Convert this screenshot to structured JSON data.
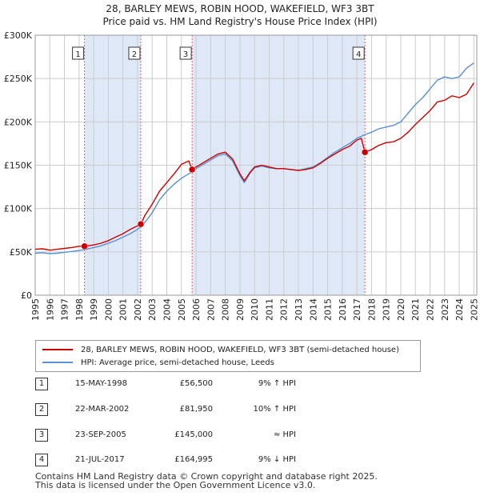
{
  "title": "28, BARLEY MEWS, ROBIN HOOD, WAKEFIELD, WF3 3BT",
  "subtitle": "Price paid vs. HM Land Registry's House Price Index (HPI)",
  "colors": {
    "property": "#cc0000",
    "hpi": "#5b8fd0",
    "shade": "#dfe8f7",
    "marker_line": "#dd6666"
  },
  "chart_data": {
    "type": "line",
    "title": "28, BARLEY MEWS, ROBIN HOOD, WAKEFIELD, WF3 3BT",
    "xlim": [
      1995,
      2025.2
    ],
    "ylim": [
      0,
      300000
    ],
    "x_ticks": [
      1995,
      1996,
      1997,
      1998,
      1999,
      2000,
      2001,
      2002,
      2003,
      2004,
      2005,
      2006,
      2007,
      2008,
      2009,
      2010,
      2011,
      2012,
      2013,
      2014,
      2015,
      2016,
      2017,
      2018,
      2019,
      2020,
      2021,
      2022,
      2023,
      2024,
      2025
    ],
    "x_tick_labels": [
      "1995",
      "1996",
      "1997",
      "1998",
      "1999",
      "2000",
      "2001",
      "2002",
      "2003",
      "2004",
      "2005",
      "2006",
      "2007",
      "2008",
      "2009",
      "2010",
      "2011",
      "2012",
      "2013",
      "2014",
      "2015",
      "2016",
      "2017",
      "2018",
      "2019",
      "2020",
      "2021",
      "2022",
      "2023",
      "2024",
      "2025"
    ],
    "y_ticks": [
      0,
      50000,
      100000,
      150000,
      200000,
      250000,
      300000
    ],
    "y_tick_labels": [
      "£0",
      "£50K",
      "£100K",
      "£150K",
      "£200K",
      "£250K",
      "£300K"
    ],
    "grid": true,
    "shaded_ranges": [
      [
        1998.37,
        2002.22
      ],
      [
        2005.73,
        2017.55
      ]
    ],
    "series": [
      {
        "name": "28, BARLEY MEWS, ROBIN HOOD, WAKEFIELD, WF3 3BT (semi-detached house)",
        "x": [
          1995,
          1995.5,
          1996,
          1996.5,
          1997,
          1997.5,
          1998,
          1998.37,
          1999,
          1999.5,
          2000,
          2000.5,
          2001,
          2001.5,
          2002,
          2002.22,
          2002.5,
          2003,
          2003.5,
          2004,
          2004.5,
          2005,
          2005.5,
          2005.73,
          2006,
          2006.5,
          2007,
          2007.5,
          2008,
          2008.5,
          2009,
          2009.3,
          2009.7,
          2010,
          2010.5,
          2011,
          2011.5,
          2012,
          2012.5,
          2013,
          2013.5,
          2014,
          2014.5,
          2015,
          2015.5,
          2016,
          2016.5,
          2017,
          2017.3,
          2017.55,
          2018,
          2018.5,
          2019,
          2019.5,
          2020,
          2020.5,
          2021,
          2021.5,
          2022,
          2022.5,
          2023,
          2023.5,
          2024,
          2024.5,
          2025
        ],
        "y": [
          53000,
          53500,
          52000,
          53000,
          54000,
          55000,
          56500,
          56500,
          58000,
          60000,
          63000,
          67000,
          71000,
          76000,
          80000,
          81950,
          92000,
          105000,
          120000,
          130000,
          140000,
          151000,
          155000,
          145000,
          148000,
          153000,
          158000,
          163000,
          165000,
          157000,
          140000,
          132000,
          142000,
          148000,
          150000,
          148000,
          146000,
          146000,
          145000,
          144000,
          145000,
          147000,
          152000,
          158000,
          163000,
          168000,
          172000,
          179000,
          181000,
          164995,
          168000,
          173000,
          176000,
          177000,
          181000,
          188000,
          197000,
          205000,
          213000,
          223000,
          225000,
          230000,
          228000,
          232000,
          245000
        ]
      },
      {
        "name": "HPI: Average price, semi-detached house, Leeds",
        "x": [
          1995,
          1995.5,
          1996,
          1996.5,
          1997,
          1997.5,
          1998,
          1998.5,
          1999,
          1999.5,
          2000,
          2000.5,
          2001,
          2001.5,
          2002,
          2002.5,
          2003,
          2003.5,
          2004,
          2004.5,
          2005,
          2005.5,
          2006,
          2006.5,
          2007,
          2007.5,
          2008,
          2008.5,
          2009,
          2009.3,
          2009.7,
          2010,
          2010.5,
          2011,
          2011.5,
          2012,
          2012.5,
          2013,
          2013.5,
          2014,
          2014.5,
          2015,
          2015.5,
          2016,
          2016.5,
          2017,
          2017.5,
          2018,
          2018.5,
          2019,
          2019.5,
          2020,
          2020.5,
          2021,
          2021.5,
          2022,
          2022.5,
          2023,
          2023.5,
          2024,
          2024.5,
          2025
        ],
        "y": [
          48500,
          49000,
          48000,
          48500,
          49500,
          50500,
          51500,
          53000,
          55000,
          57000,
          60000,
          63000,
          67000,
          71000,
          76000,
          84000,
          95000,
          110000,
          120000,
          128000,
          135000,
          140000,
          146000,
          151000,
          156000,
          161000,
          163000,
          155000,
          138000,
          130000,
          141000,
          147000,
          149000,
          147000,
          146000,
          146000,
          145000,
          144000,
          146000,
          148000,
          153000,
          159000,
          165000,
          170000,
          175000,
          181000,
          185000,
          188000,
          192000,
          194000,
          196000,
          200000,
          210000,
          220000,
          228000,
          238000,
          248000,
          252000,
          250000,
          252000,
          262000,
          268000
        ]
      }
    ],
    "annotations": [
      {
        "label": "1",
        "x": 1998.37,
        "y": 56500
      },
      {
        "label": "2",
        "x": 2002.22,
        "y": 81950
      },
      {
        "label": "3",
        "x": 2005.73,
        "y": 145000
      },
      {
        "label": "4",
        "x": 2017.55,
        "y": 164995
      }
    ]
  },
  "legend": {
    "property_label": "28, BARLEY MEWS, ROBIN HOOD, WAKEFIELD, WF3 3BT (semi-detached house)",
    "hpi_label": "HPI: Average price, semi-detached house, Leeds"
  },
  "sales": [
    {
      "num": "1",
      "date": "15-MAY-1998",
      "price": "£56,500",
      "hpi": "9% ↑ HPI"
    },
    {
      "num": "2",
      "date": "22-MAR-2002",
      "price": "£81,950",
      "hpi": "10% ↑ HPI"
    },
    {
      "num": "3",
      "date": "23-SEP-2005",
      "price": "£145,000",
      "hpi": "≈ HPI"
    },
    {
      "num": "4",
      "date": "21-JUL-2017",
      "price": "£164,995",
      "hpi": "9% ↓ HPI"
    }
  ],
  "footer": {
    "line1": "Contains HM Land Registry data © Crown copyright and database right 2025.",
    "line2": "This data is licensed under the Open Government Licence v3.0."
  }
}
